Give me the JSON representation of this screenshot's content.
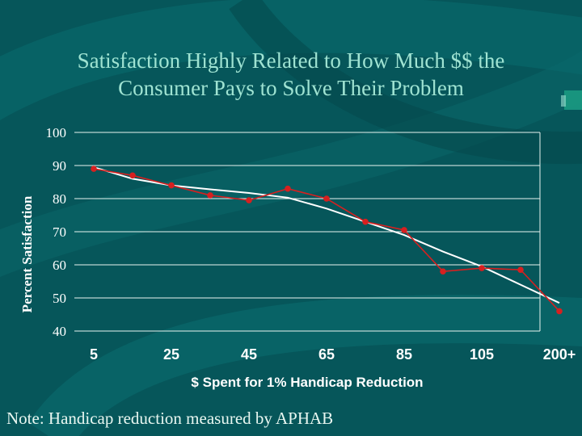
{
  "slide": {
    "title_line1": "Satisfaction Highly Related to How Much $$ the",
    "title_line2": "Consumer Pays to Solve Their Problem",
    "note": "Note: Handicap reduction measured by APHAB"
  },
  "colors": {
    "background": "#06565a",
    "title": "#9fe3d2",
    "axis_text": "#ffffff",
    "data_line": "#d62020",
    "trend_line": "#ffffff",
    "gridline": "#e8f4f0"
  },
  "chart_data": {
    "type": "line",
    "title": "",
    "xlabel": "$ Spent for 1% Handicap Reduction",
    "ylabel": "Percent Satisfaction",
    "ylim": [
      40,
      100
    ],
    "yticks": [
      40,
      50,
      60,
      70,
      80,
      90,
      100
    ],
    "xtick_labels": [
      "5",
      "25",
      "45",
      "65",
      "85",
      "105",
      "200+"
    ],
    "x": [
      5,
      15,
      25,
      35,
      45,
      55,
      65,
      75,
      85,
      95,
      105,
      115,
      125
    ],
    "series": [
      {
        "role": "observed",
        "values": [
          89,
          87,
          84,
          81,
          79.5,
          83,
          80,
          73,
          70.5,
          58,
          59,
          58.5,
          46
        ]
      },
      {
        "role": "trend",
        "values": [
          89.5,
          86,
          84,
          82.8,
          81.7,
          80.3,
          77,
          73,
          69,
          64,
          59.5,
          54,
          48.5
        ]
      }
    ],
    "grid": true,
    "legend": "none"
  }
}
